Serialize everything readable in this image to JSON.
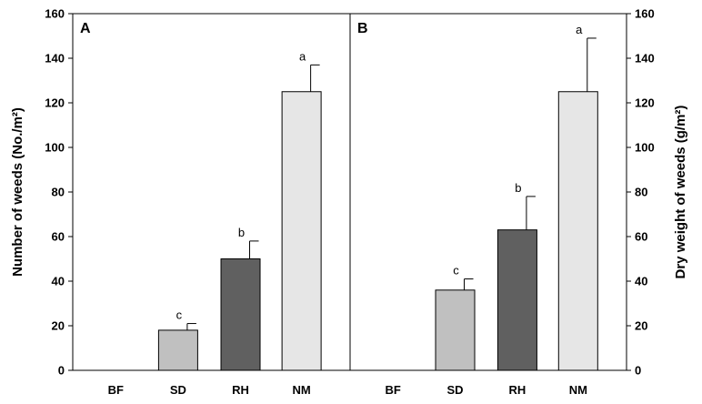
{
  "chart_data": [
    {
      "type": "bar",
      "panel_label": "A",
      "ylabel": "Number of weeds (No./m²)",
      "ylim": [
        0,
        160
      ],
      "yticks": [
        0,
        20,
        40,
        60,
        80,
        100,
        120,
        140,
        160
      ],
      "y_axis_side": "left",
      "categories": [
        "BF",
        "SD",
        "RH",
        "NM"
      ],
      "values": [
        0,
        18,
        50,
        125
      ],
      "errors": [
        0,
        3,
        8,
        12
      ],
      "letters": [
        "",
        "c",
        "b",
        "a"
      ],
      "bar_colors": [
        "#ffffff",
        "#c0c0c0",
        "#606060",
        "#e6e6e6"
      ]
    },
    {
      "type": "bar",
      "panel_label": "B",
      "ylabel": "Dry weight of weeds (g/m²)",
      "ylim": [
        0,
        160
      ],
      "yticks": [
        0,
        20,
        40,
        60,
        80,
        100,
        120,
        140,
        160
      ],
      "y_axis_side": "right",
      "categories": [
        "BF",
        "SD",
        "RH",
        "NM"
      ],
      "values": [
        0,
        36,
        63,
        125
      ],
      "errors": [
        0,
        5,
        15,
        24
      ],
      "letters": [
        "",
        "c",
        "b",
        "a"
      ],
      "bar_colors": [
        "#ffffff",
        "#c0c0c0",
        "#606060",
        "#e6e6e6"
      ]
    }
  ]
}
